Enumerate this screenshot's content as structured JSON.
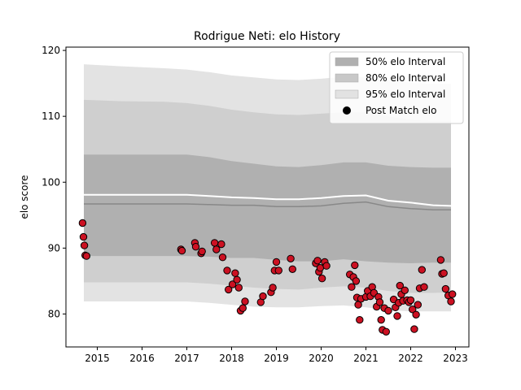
{
  "chart_data": {
    "type": "scatter",
    "title": "Rodrigue Neti: elo History",
    "xlabel": "",
    "ylabel": "elo score",
    "xlim": [
      2014.3,
      2023.3
    ],
    "ylim": [
      75,
      120.5
    ],
    "x_ticks": [
      2015,
      2016,
      2017,
      2018,
      2019,
      2020,
      2021,
      2022,
      2023
    ],
    "x_tick_labels": [
      "2015",
      "2016",
      "2017",
      "2018",
      "2019",
      "2020",
      "2021",
      "2022",
      "2023"
    ],
    "y_ticks": [
      80,
      90,
      100,
      110,
      120
    ],
    "y_tick_labels": [
      "80",
      "90",
      "100",
      "110",
      "120"
    ],
    "grid": false,
    "legend": {
      "placement": "top-right",
      "entries": [
        {
          "label": "50% elo Interval",
          "color": "#b0b0b0"
        },
        {
          "label": "80% elo Interval",
          "color": "#c8c8c8"
        },
        {
          "label": "95% elo Interval",
          "color": "#e2e2e2"
        },
        {
          "label": "Post Match elo",
          "color": "#000000"
        }
      ]
    },
    "colors": {
      "band50": "#b0b0b0",
      "band80": "#cfcfcf",
      "band95": "#e3e3e3",
      "median_line": "#888888",
      "mean_line": "#ffffff",
      "point_fill": "#cc1122",
      "point_edge": "#000000"
    },
    "bands": {
      "x": [
        2014.7,
        2015.5,
        2016.5,
        2017.0,
        2017.5,
        2018.0,
        2018.5,
        2019.0,
        2019.5,
        2020.0,
        2020.5,
        2021.0,
        2021.5,
        2022.0,
        2022.5,
        2022.9
      ],
      "median": [
        96.7,
        96.7,
        96.7,
        96.7,
        96.6,
        96.5,
        96.5,
        96.3,
        96.3,
        96.4,
        96.8,
        97.0,
        96.3,
        96.0,
        95.8,
        95.8
      ],
      "mean": [
        98.1,
        98.1,
        98.1,
        98.1,
        97.9,
        97.7,
        97.6,
        97.4,
        97.4,
        97.6,
        97.9,
        98.0,
        97.2,
        96.9,
        96.5,
        96.4
      ],
      "p50_low": [
        88.8,
        88.8,
        88.8,
        88.8,
        88.7,
        88.5,
        88.5,
        88.2,
        88.0,
        88.0,
        88.3,
        88.0,
        87.8,
        87.7,
        87.8,
        87.8
      ],
      "p50_high": [
        104.2,
        104.2,
        104.2,
        104.2,
        103.8,
        103.2,
        102.8,
        102.4,
        102.3,
        102.6,
        103.0,
        103.0,
        102.5,
        102.3,
        102.2,
        102.2
      ],
      "p80_low": [
        84.8,
        84.8,
        84.8,
        84.8,
        84.6,
        84.3,
        84.0,
        83.8,
        83.7,
        84.0,
        84.2,
        84.0,
        83.5,
        83.2,
        83.2,
        83.3
      ],
      "p80_high": [
        112.5,
        112.3,
        112.2,
        112.0,
        111.6,
        111.0,
        110.6,
        110.3,
        110.2,
        110.4,
        110.6,
        110.6,
        110.0,
        109.5,
        109.3,
        109.3
      ],
      "p95_low": [
        81.9,
        81.9,
        81.9,
        81.9,
        81.7,
        81.4,
        81.1,
        81.0,
        81.0,
        81.2,
        81.3,
        81.0,
        80.6,
        80.4,
        80.4,
        80.4
      ],
      "p95_high": [
        117.9,
        117.6,
        117.3,
        117.1,
        116.7,
        116.2,
        115.9,
        115.6,
        115.5,
        115.7,
        116.0,
        116.0,
        115.5,
        115.1,
        114.9,
        114.9
      ]
    },
    "series": [
      {
        "name": "Post Match elo",
        "x": [
          2014.67,
          2014.69,
          2014.71,
          2014.73,
          2014.76,
          2016.87,
          2016.89,
          2017.18,
          2017.2,
          2017.32,
          2017.34,
          2017.62,
          2017.66,
          2017.77,
          2017.8,
          2017.9,
          2017.93,
          2018.02,
          2018.08,
          2018.12,
          2018.16,
          2018.2,
          2018.25,
          2018.3,
          2018.65,
          2018.7,
          2018.88,
          2018.92,
          2018.96,
          2019.0,
          2019.05,
          2019.32,
          2019.36,
          2019.88,
          2019.92,
          2019.95,
          2019.98,
          2020.02,
          2020.08,
          2020.12,
          2020.64,
          2020.68,
          2020.72,
          2020.75,
          2020.78,
          2020.8,
          2020.83,
          2020.86,
          2020.89,
          2021.0,
          2021.04,
          2021.1,
          2021.14,
          2021.18,
          2021.24,
          2021.28,
          2021.31,
          2021.34,
          2021.37,
          2021.41,
          2021.45,
          2021.5,
          2021.62,
          2021.66,
          2021.7,
          2021.73,
          2021.76,
          2021.79,
          2021.83,
          2021.87,
          2021.92,
          2021.96,
          2022.0,
          2022.04,
          2022.08,
          2022.12,
          2022.16,
          2022.2,
          2022.25,
          2022.3,
          2022.67,
          2022.7,
          2022.74,
          2022.78,
          2022.84,
          2022.9,
          2022.93
        ],
        "y": [
          93.8,
          91.7,
          90.4,
          88.9,
          88.8,
          89.8,
          89.6,
          90.8,
          90.2,
          89.2,
          89.5,
          90.8,
          89.8,
          90.6,
          88.6,
          86.6,
          83.7,
          84.5,
          86.2,
          85.2,
          84.0,
          80.5,
          80.9,
          81.9,
          81.8,
          82.7,
          83.3,
          84.0,
          86.6,
          87.9,
          86.6,
          88.4,
          86.8,
          87.7,
          88.1,
          86.4,
          87.0,
          85.4,
          87.9,
          87.3,
          86.0,
          84.1,
          85.6,
          87.4,
          85.0,
          82.5,
          81.4,
          79.1,
          82.3,
          82.6,
          83.5,
          82.7,
          84.1,
          83.2,
          81.1,
          82.6,
          81.8,
          79.1,
          77.6,
          80.9,
          77.3,
          80.5,
          82.2,
          81.0,
          79.7,
          81.7,
          84.3,
          83.0,
          82.0,
          83.6,
          82.1,
          81.8,
          82.1,
          80.7,
          77.7,
          79.9,
          81.4,
          83.9,
          86.7,
          84.1,
          88.2,
          86.1,
          86.2,
          83.8,
          82.8,
          81.9,
          83.0
        ]
      }
    ]
  }
}
